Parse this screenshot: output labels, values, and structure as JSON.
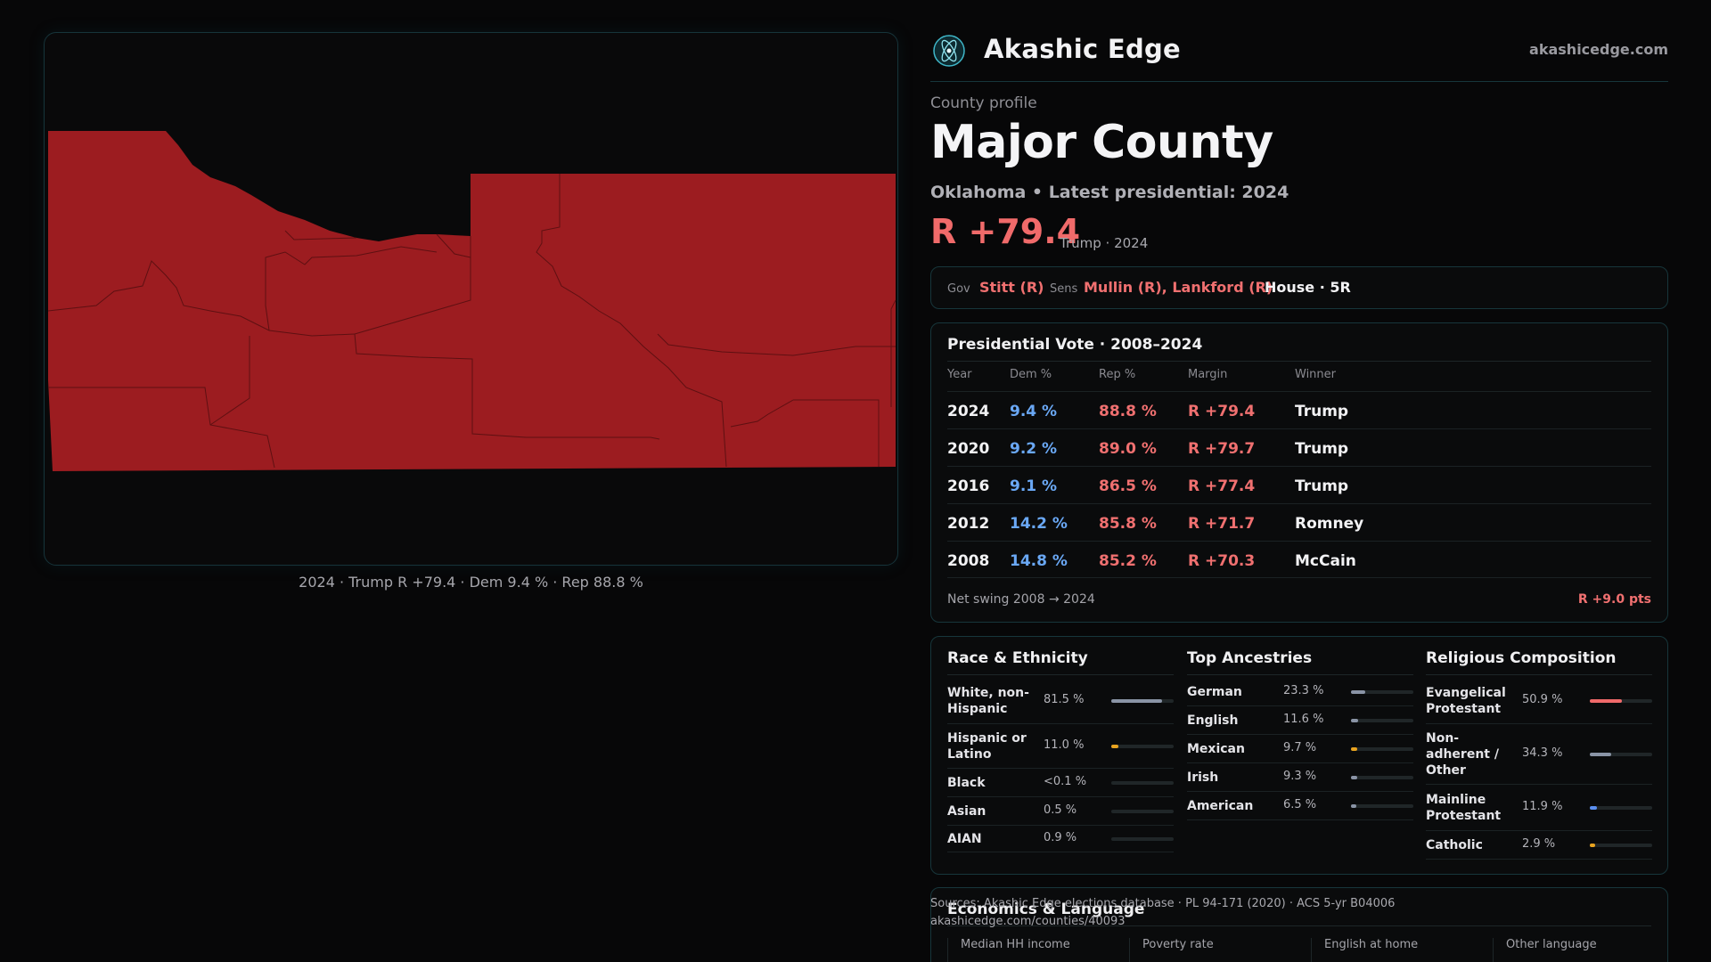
{
  "map": {
    "caption": "2024 · Trump R +79.4 · Dem 9.4 % · Rep 88.8 %",
    "fill_color": "#9c1c20",
    "line_color": "#5e1012"
  },
  "header": {
    "brand": "Akashic Edge",
    "site": "akashicedge.com",
    "logo_icon": "atom-icon"
  },
  "profile": {
    "label": "County profile",
    "name": "Major County",
    "subtitle": "Oklahoma • Latest presidential: 2024",
    "margin": "R +79.4",
    "margin_note": "Trump · 2024",
    "margin_color": "#f06a6a"
  },
  "officials": {
    "gov_label": "Gov",
    "gov_value": "Stitt (R)",
    "sens_label": "Sens",
    "sens_value": "Mullin (R), Lankford (R)",
    "house_value": "House · 5R"
  },
  "votes": {
    "title": "Presidential Vote · 2008–2024",
    "headers": [
      "Year",
      "Dem %",
      "Rep %",
      "Margin",
      "Winner"
    ],
    "rows": [
      {
        "year": "2024",
        "dem": "9.4 %",
        "rep": "88.8 %",
        "margin": "R +79.4",
        "winner": "Trump"
      },
      {
        "year": "2020",
        "dem": "9.2 %",
        "rep": "89.0 %",
        "margin": "R +79.7",
        "winner": "Trump"
      },
      {
        "year": "2016",
        "dem": "9.1 %",
        "rep": "86.5 %",
        "margin": "R +77.4",
        "winner": "Trump"
      },
      {
        "year": "2012",
        "dem": "14.2 %",
        "rep": "85.8 %",
        "margin": "R +71.7",
        "winner": "Romney"
      },
      {
        "year": "2008",
        "dem": "14.8 %",
        "rep": "85.2 %",
        "margin": "R +70.3",
        "winner": "McCain"
      }
    ],
    "swing_label": "Net swing 2008 → 2024",
    "swing_value": "R +9.0 pts",
    "dem_color": "#6aa8f5",
    "rep_color": "#f07070"
  },
  "race": {
    "title": "Race & Ethnicity",
    "items": [
      {
        "label": "White, non-Hispanic",
        "value": "81.5 %",
        "pct": 81.5,
        "color": "#8a94a6"
      },
      {
        "label": "Hispanic or Latino",
        "value": "11.0 %",
        "pct": 11.0,
        "color": "#e8a320"
      },
      {
        "label": "Black",
        "value": "<0.1 %",
        "pct": 0.1,
        "color": "#8a94a6"
      },
      {
        "label": "Asian",
        "value": "0.5 %",
        "pct": 0.5,
        "color": "#8a94a6"
      },
      {
        "label": "AIAN",
        "value": "0.9 %",
        "pct": 0.9,
        "color": "#8a94a6"
      }
    ]
  },
  "ancestry": {
    "title": "Top Ancestries",
    "items": [
      {
        "label": "German",
        "value": "23.3 %",
        "pct": 23.3,
        "color": "#8a94a6"
      },
      {
        "label": "English",
        "value": "11.6 %",
        "pct": 11.6,
        "color": "#8a94a6"
      },
      {
        "label": "Mexican",
        "value": "9.7 %",
        "pct": 9.7,
        "color": "#e8a320"
      },
      {
        "label": "Irish",
        "value": "9.3 %",
        "pct": 9.3,
        "color": "#8a94a6"
      },
      {
        "label": "American",
        "value": "6.5 %",
        "pct": 6.5,
        "color": "#8a94a6"
      }
    ]
  },
  "religion": {
    "title": "Religious Composition",
    "items": [
      {
        "label": "Evangelical Protestant",
        "value": "50.9 %",
        "pct": 50.9,
        "color": "#f06a6a"
      },
      {
        "label": "Non-adherent / Other",
        "value": "34.3 %",
        "pct": 34.3,
        "color": "#8a94a6"
      },
      {
        "label": "Mainline Protestant",
        "value": "11.9 %",
        "pct": 11.9,
        "color": "#5b8ff0"
      },
      {
        "label": "Catholic",
        "value": "2.9 %",
        "pct": 2.9,
        "color": "#e8a320"
      }
    ]
  },
  "economics": {
    "title": "Economics & Language",
    "headers": [
      "Median HH income",
      "Poverty rate",
      "English at home",
      "Other language"
    ]
  },
  "sources": {
    "line1": "Sources: Akashic Edge elections database · PL 94-171 (2020) · ACS 5-yr B04006",
    "line2": "akashicedge.com/counties/40093"
  }
}
